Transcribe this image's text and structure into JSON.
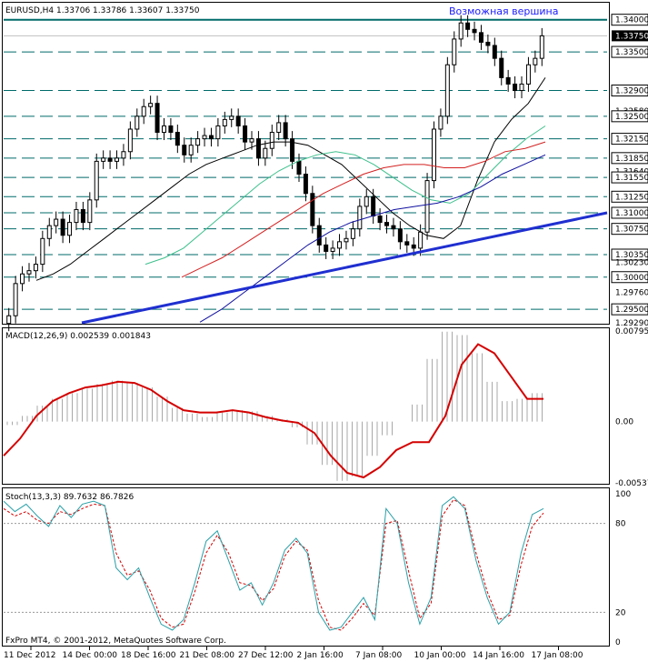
{
  "main": {
    "header": "EURUSD,H4  1.33706 1.33786 1.33607 1.33750",
    "annotation": "Возможная вершина",
    "ylim": [
      1.2929,
      1.3425
    ],
    "axis_labels": [
      "1.34000",
      "1.33750",
      "1.33500",
      "1.32900",
      "1.32580",
      "1.32500",
      "1.32150",
      "1.31850",
      "1.31640",
      "1.31550",
      "1.31250",
      "1.31000",
      "1.30750",
      "1.30350",
      "1.30230",
      "1.30000",
      "1.29760",
      "1.29500",
      "1.29290"
    ],
    "boxed_labels": [
      "1.34000",
      "1.33500",
      "1.32900",
      "1.32500",
      "1.32150",
      "1.31850",
      "1.31550",
      "1.31250",
      "1.31000",
      "1.30750",
      "1.30350",
      "1.30000",
      "1.29500"
    ],
    "current_price": "1.33750",
    "level_color": "#006a6a",
    "trendline_color": "#1f2fd0"
  },
  "macd": {
    "header": "MACD(12,26,9) 0.002539 0.001843",
    "axis_labels": [
      "0.007958",
      "0.00",
      "-0.005378"
    ],
    "ylim": [
      -0.005378,
      0.007958
    ],
    "signal_color": "#d40000"
  },
  "stoch": {
    "header": "Stoch(13,3,3) 89.7632 86.7826",
    "axis_labels": [
      "100",
      "80",
      "20",
      "0"
    ],
    "ylim": [
      0,
      100
    ],
    "main_color": "#2aa0a8",
    "signal_color": "#d40000"
  },
  "x_labels": [
    "11 Dec 2012",
    "14 Dec 00:00",
    "18 Dec 16:00",
    "21 Dec 08:00",
    "27 Dec 12:00",
    "2 Jan 16:00",
    "7 Jan 08:00",
    "10 Jan 00:00",
    "14 Jan 16:00",
    "17 Jan 08:00"
  ],
  "footer": "FxPro MT4, © 2001-2012, MetaQuotes Software Corp.",
  "chart_data": [
    {
      "type": "candlestick",
      "title": "EURUSD,H4  1.33706 1.33786 1.33607 1.33750",
      "series": [
        {
          "name": "close",
          "values": [
            1.294,
            1.299,
            1.3005,
            1.301,
            1.302,
            1.306,
            1.308,
            1.309,
            1.3065,
            1.3085,
            1.3105,
            1.3085,
            1.312,
            1.318,
            1.3185,
            1.318,
            1.3185,
            1.3195,
            1.323,
            1.325,
            1.3265,
            1.327,
            1.3225,
            1.3235,
            1.3225,
            1.3205,
            1.319,
            1.3205,
            1.3215,
            1.322,
            1.3215,
            1.3235,
            1.3245,
            1.325,
            1.3235,
            1.321,
            1.3215,
            1.3185,
            1.32,
            1.3225,
            1.324,
            1.3215,
            1.318,
            1.316,
            1.313,
            1.308,
            1.305,
            1.304,
            1.3045,
            1.3055,
            1.306,
            1.3075,
            1.311,
            1.3125,
            1.3095,
            1.3085,
            1.308,
            1.3075,
            1.3055,
            1.305,
            1.3045,
            1.307,
            1.315,
            1.323,
            1.325,
            1.333,
            1.337,
            1.3395,
            1.3385,
            1.338,
            1.3365,
            1.336,
            1.334,
            1.331,
            1.33,
            1.329,
            1.33,
            1.333,
            1.334,
            1.3375
          ]
        },
        {
          "name": "MA black",
          "values": [
            1.2995,
            1.3005,
            1.302,
            1.304,
            1.306,
            1.308,
            1.31,
            1.312,
            1.314,
            1.316,
            1.3175,
            1.3185,
            1.3195,
            1.3205,
            1.321,
            1.321,
            1.3205,
            1.319,
            1.3175,
            1.315,
            1.3125,
            1.31,
            1.308,
            1.3065,
            1.306,
            1.308,
            1.315,
            1.321,
            1.3245,
            1.327,
            1.331
          ]
        },
        {
          "name": "MA green",
          "values": [
            1.302,
            1.303,
            1.3045,
            1.307,
            1.3095,
            1.312,
            1.3145,
            1.3165,
            1.318,
            1.319,
            1.3195,
            1.319,
            1.3175,
            1.3155,
            1.3135,
            1.312,
            1.3115,
            1.313,
            1.316,
            1.319,
            1.3215,
            1.3235
          ]
        },
        {
          "name": "MA red",
          "values": [
            1.3,
            1.3015,
            1.303,
            1.305,
            1.307,
            1.309,
            1.311,
            1.313,
            1.3145,
            1.316,
            1.317,
            1.3175,
            1.3175,
            1.317,
            1.317,
            1.318,
            1.3195,
            1.32,
            1.321
          ]
        },
        {
          "name": "MA blue",
          "values": [
            1.293,
            1.295,
            1.2975,
            1.3,
            1.3025,
            1.305,
            1.307,
            1.3085,
            1.3095,
            1.3105,
            1.311,
            1.3115,
            1.3125,
            1.314,
            1.316,
            1.3175,
            1.319
          ]
        }
      ]
    },
    {
      "type": "bar",
      "title": "MACD(12,26,9) 0.002539 0.001843",
      "ylim": [
        -0.005378,
        0.007958
      ],
      "series": [
        {
          "name": "histogram",
          "values": [
            -0.0003,
            0.0005,
            0.0014,
            0.002,
            0.0025,
            0.0029,
            0.0033,
            0.0036,
            0.0034,
            0.003,
            0.0022,
            0.0012,
            0.0007,
            0.0004,
            0.0008,
            0.001,
            0.0009,
            0.0005,
            0.0002,
            -0.0005,
            -0.002,
            -0.0038,
            -0.0052,
            -0.0048,
            -0.003,
            -0.0012,
            0.0,
            0.0015,
            0.0055,
            0.0079,
            0.0076,
            0.006,
            0.0035,
            0.0018,
            0.002,
            0.0025
          ]
        },
        {
          "name": "signal",
          "values": [
            -0.003,
            -0.0015,
            0.0005,
            0.0018,
            0.0025,
            0.003,
            0.0032,
            0.0035,
            0.0034,
            0.0028,
            0.0018,
            0.001,
            0.0008,
            0.0008,
            0.001,
            0.0008,
            0.0004,
            0.0001,
            -0.0001,
            -0.001,
            -0.003,
            -0.0045,
            -0.0049,
            -0.004,
            -0.0025,
            -0.0018,
            -0.0018,
            0.0005,
            0.005,
            0.0068,
            0.006,
            0.004,
            0.002,
            0.002
          ]
        }
      ]
    },
    {
      "type": "line",
      "title": "Stoch(13,3,3) 89.7632 86.7826",
      "ylim": [
        0,
        100
      ],
      "series": [
        {
          "name": "main",
          "values": [
            95,
            88,
            93,
            85,
            78,
            92,
            84,
            93,
            95,
            92,
            50,
            42,
            50,
            30,
            12,
            8,
            15,
            40,
            68,
            75,
            55,
            35,
            40,
            25,
            40,
            62,
            70,
            60,
            20,
            8,
            10,
            20,
            30,
            15,
            90,
            80,
            40,
            12,
            30,
            92,
            98,
            90,
            55,
            30,
            12,
            20,
            60,
            86,
            90
          ]
        },
        {
          "name": "signal",
          "values": [
            90,
            85,
            88,
            82,
            80,
            88,
            86,
            90,
            93,
            92,
            60,
            45,
            48,
            35,
            16,
            10,
            12,
            34,
            60,
            72,
            60,
            40,
            38,
            28,
            36,
            58,
            68,
            62,
            28,
            10,
            8,
            16,
            26,
            18,
            80,
            82,
            48,
            16,
            26,
            85,
            96,
            92,
            60,
            34,
            15,
            18,
            52,
            78,
            87
          ]
        }
      ]
    }
  ]
}
